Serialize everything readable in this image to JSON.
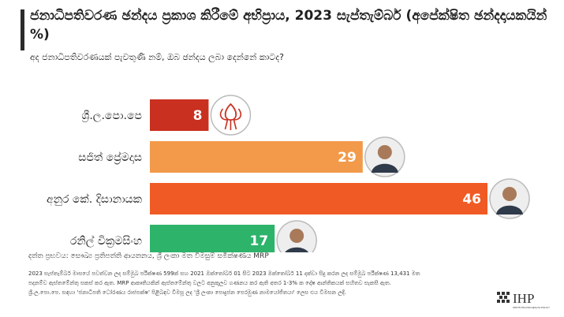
{
  "header": {
    "title": "ජනාධිපතිවරණ ඡන්දය ප්‍රකාශ කිරීමේ අභිප්‍රාය, 2023 සැප්තැම්බර් (අපේක්ෂිත ඡන්දදායකයින් %)",
    "subtitle": "අද ජනාධිපතිවරණයක් පැවතුණි නම්, ඔබ ඡන්දය ලබා දෙන්නේ කාටද?"
  },
  "chart_data": {
    "type": "bar",
    "orientation": "horizontal",
    "categories": [
      "ශ්‍රී.ල.පො.පෙ",
      "සජිත් ප්‍රේමදාස",
      "අනුර කේ. දිසානායක",
      "රනිල් වික්‍රමසිංහ"
    ],
    "values": [
      8,
      29,
      46,
      17
    ],
    "colors": [
      "#c9301f",
      "#f29a4a",
      "#f05a25",
      "#2eb36b"
    ],
    "xlim": [
      0,
      46
    ],
    "markers": [
      "lotus-logo",
      "candidate-photo",
      "candidate-photo",
      "candidate-photo"
    ],
    "grid": false,
    "legend": "none"
  },
  "footer": {
    "source": "දත්ත ප්‍රභවය: සෞඛ්‍ය ප්‍රතිපත්ති ආයතනය, ශ්‍රී ලංකා මත විමසුම් සමීක්ෂණය MRP",
    "note_1": "2023 සැප්තැම්බර් මාසයේ පවත්වන ලද සම්මුඛ පරීක්ෂණ 599ක් සහ 2021 ඔක්තෝබර් 01 සිට 2023 ඔක්තෝබර් 11 දක්වා සිදු කරන ලද සම්මුඛ පරීක්ෂණ 13,431 මත",
    "note_2": "පදනම්ව ඇස්තමේන්තු සකස් කර ඇත. MRP ආකෘතියකින් ඇස්තමේන්තු වලට අනුකූලව ගණනය කර ඇති අතර 1-3% ක දෝෂ ආන්තිකයක් සහිතව සැකසී ඇත.",
    "note_3": "ශ්‍රී.ල.පො.පෙ. සඳහා 'ජනාධිපති ධෝරණය රාජපක්ෂ' පිළිබඳව විමසූ ලද 'ශ්‍රී ලංකා පොදුජන පෙරමුණ නාමයෝජිතයා' ලෙස එය විමසන ලදී.",
    "logo_text": "IHP",
    "logo_subtext": "INSTITUTE FOR HEALTH POLICY"
  }
}
